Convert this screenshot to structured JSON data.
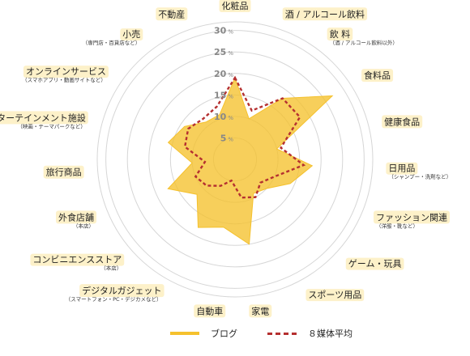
{
  "chart_data": {
    "type": "radar",
    "categories": [
      {
        "label": "化粧品",
        "sub": ""
      },
      {
        "label": "酒 / アルコール飲料",
        "sub": ""
      },
      {
        "label": "飲 料",
        "sub": "（酒 / アルコール飲料以外）"
      },
      {
        "label": "食料品",
        "sub": ""
      },
      {
        "label": "健康食品",
        "sub": ""
      },
      {
        "label": "日用品",
        "sub": "（シャンプー・洗剤など）"
      },
      {
        "label": "ファッション関連",
        "sub": "（洋服・靴など）"
      },
      {
        "label": "ゲーム・玩具",
        "sub": ""
      },
      {
        "label": "スポーツ用品",
        "sub": ""
      },
      {
        "label": "家電",
        "sub": ""
      },
      {
        "label": "自動車",
        "sub": ""
      },
      {
        "label": "デジタルガジェット",
        "sub": "（スマートフォン・PC・デジカメなど）"
      },
      {
        "label": "コンビニエンスストア",
        "sub": "（本店）"
      },
      {
        "label": "外食店舗",
        "sub": "（本店）"
      },
      {
        "label": "旅行商品",
        "sub": ""
      },
      {
        "label": "エンターテインメント施設",
        "sub": "（映画・テーマパークなど）"
      },
      {
        "label": "オンラインサービス",
        "sub": "（スマホアプリ・動画サイトなど）"
      },
      {
        "label": "小売",
        "sub": "（専門店・百貨店など）"
      },
      {
        "label": "不動産",
        "sub": ""
      }
    ],
    "series": [
      {
        "name": "ブログ",
        "color": "#f5c12d",
        "values": [
          19,
          10,
          18,
          27,
          10,
          18,
          14,
          10,
          9,
          20,
          16,
          18,
          12,
          17,
          10,
          16,
          14,
          11,
          11
        ]
      },
      {
        "name": "８媒体平均",
        "color": "#b53030",
        "values": [
          19,
          12,
          18,
          18,
          11,
          16,
          10,
          8,
          10,
          9,
          5,
          7,
          9,
          10,
          7,
          12,
          13,
          12,
          13
        ]
      }
    ],
    "ticks": [
      5,
      10,
      15,
      20,
      25,
      30
    ],
    "tick_unit": "%",
    "rlim": [
      0,
      32
    ],
    "legend_position": "bottom"
  }
}
